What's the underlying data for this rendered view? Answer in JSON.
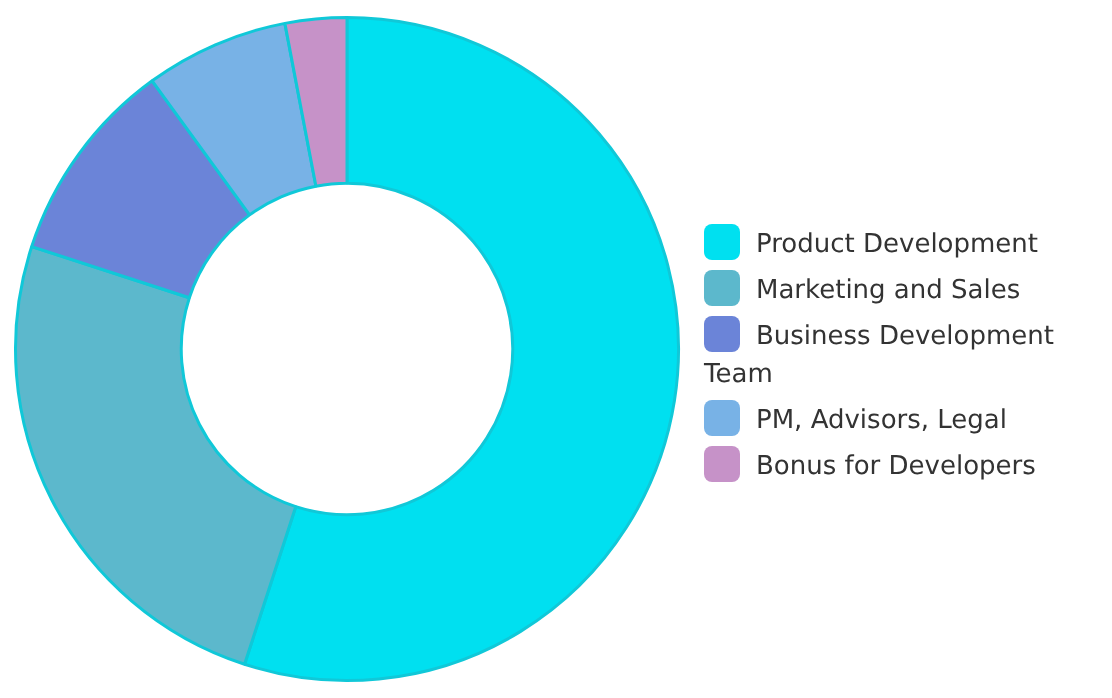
{
  "chart_data": {
    "type": "donut",
    "categories": [
      "Product Development",
      "Marketing and Sales",
      "Business Development Team",
      "PM, Advisors, Legal",
      "Bonus for Developers"
    ],
    "values": [
      55,
      25,
      10,
      7,
      3
    ],
    "colors": [
      "#00e0f0",
      "#5cb8cc",
      "#6b84d8",
      "#78b2e6",
      "#c692c8"
    ],
    "legend": "right"
  }
}
